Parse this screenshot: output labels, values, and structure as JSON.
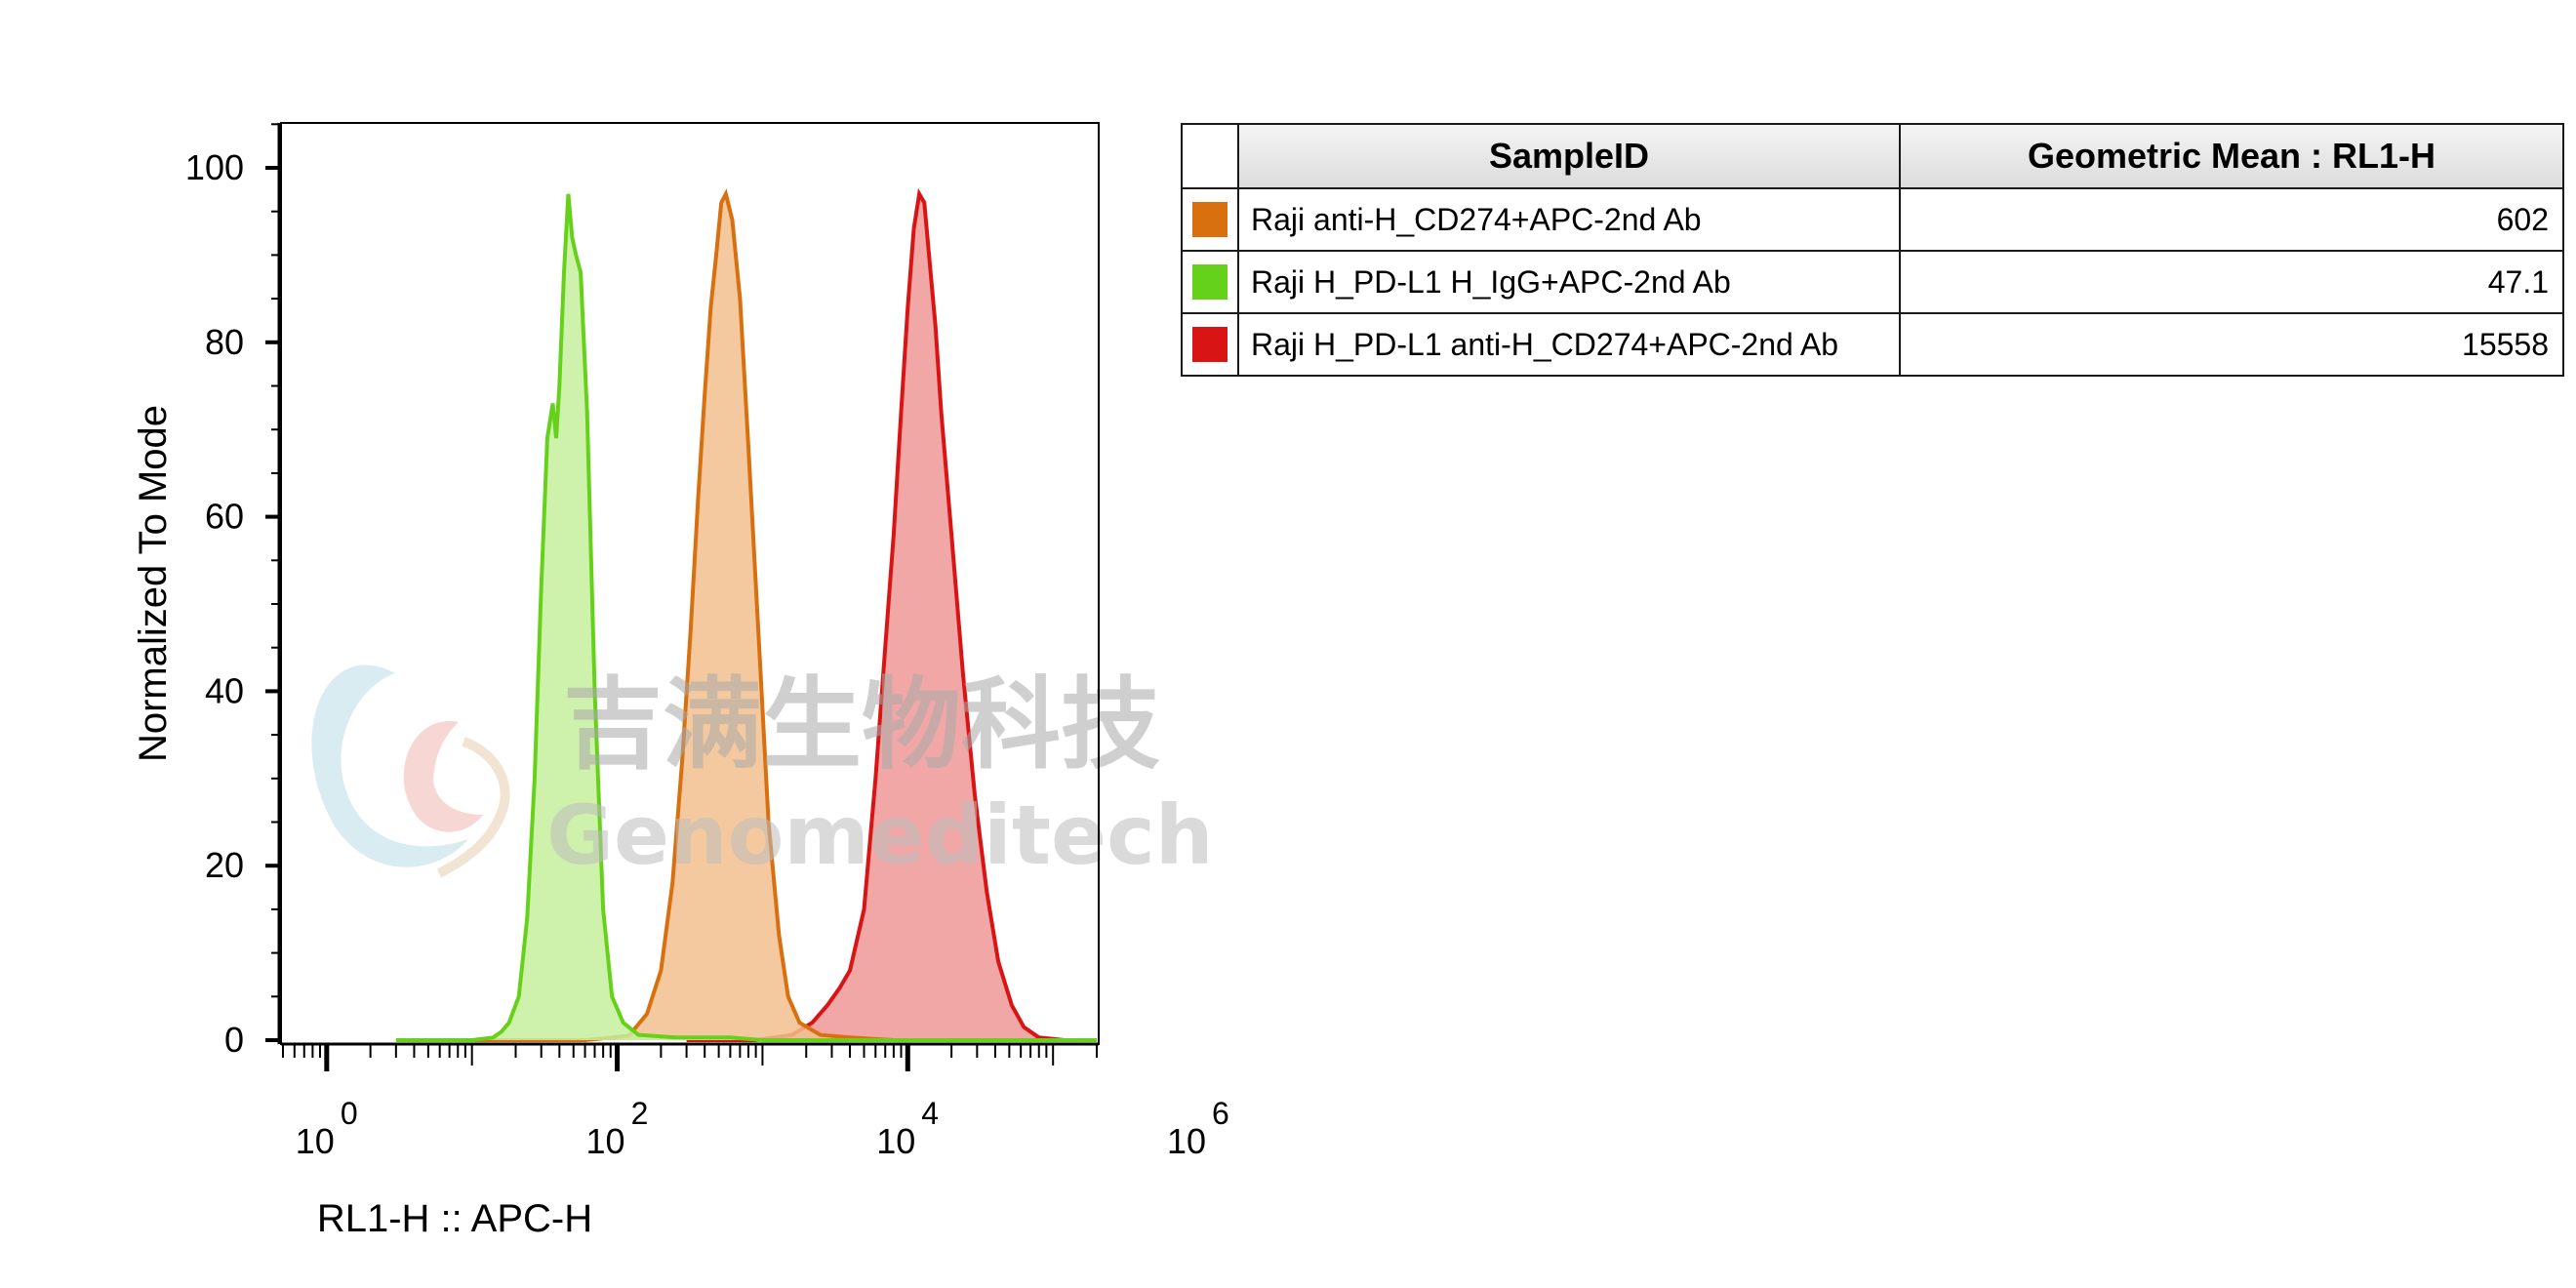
{
  "chart_data": {
    "type": "area",
    "xlabel": "RL1-H :: APC-H",
    "ylabel": "Normalized To Mode",
    "x_scale": "log",
    "xlim": [
      0.5,
      200000
    ],
    "ylim": [
      0,
      105
    ],
    "x_major_ticks": [
      {
        "base": "10",
        "exp": "0",
        "value": 1
      },
      {
        "base": "10",
        "exp": "2",
        "value": 100
      },
      {
        "base": "10",
        "exp": "4",
        "value": 10000
      },
      {
        "base": "10",
        "exp": "6",
        "value": 1000000
      }
    ],
    "y_ticks": [
      {
        "label": "0",
        "value": 0
      },
      {
        "label": "20",
        "value": 20
      },
      {
        "label": "40",
        "value": 40
      },
      {
        "label": "60",
        "value": 60
      },
      {
        "label": "80",
        "value": 80
      },
      {
        "label": "100",
        "value": 100
      }
    ],
    "series": [
      {
        "name": "Raji anti-H_CD274+APC-2nd Ab",
        "geometric_mean": "602",
        "line_color": "#d9700f",
        "fill_color": "#f2c08e",
        "points": [
          [
            8,
            0
          ],
          [
            60,
            0
          ],
          [
            120,
            0.5
          ],
          [
            160,
            3
          ],
          [
            200,
            8
          ],
          [
            240,
            18
          ],
          [
            280,
            32
          ],
          [
            320,
            47
          ],
          [
            360,
            62
          ],
          [
            400,
            74
          ],
          [
            440,
            84
          ],
          [
            480,
            90
          ],
          [
            520,
            96
          ],
          [
            560,
            97
          ],
          [
            620,
            94
          ],
          [
            700,
            85
          ],
          [
            800,
            68
          ],
          [
            950,
            45
          ],
          [
            1100,
            25
          ],
          [
            1300,
            12
          ],
          [
            1500,
            5
          ],
          [
            1800,
            2
          ],
          [
            2500,
            0.6
          ],
          [
            4000,
            0.3
          ],
          [
            8000,
            0
          ],
          [
            200000,
            0
          ]
        ]
      },
      {
        "name": "Raji H_PD-L1 H_IgG+APC-2nd Ab",
        "geometric_mean": "47.1",
        "line_color": "#66d11a",
        "fill_color": "#c5f09e",
        "points": [
          [
            3,
            0
          ],
          [
            10,
            0
          ],
          [
            14,
            0.3
          ],
          [
            16,
            1
          ],
          [
            18,
            2
          ],
          [
            21,
            5
          ],
          [
            24,
            14
          ],
          [
            27,
            30
          ],
          [
            30,
            52
          ],
          [
            33,
            69
          ],
          [
            36,
            73
          ],
          [
            38,
            69
          ],
          [
            40,
            75
          ],
          [
            43,
            88
          ],
          [
            46,
            97
          ],
          [
            49,
            92
          ],
          [
            52,
            90
          ],
          [
            56,
            88
          ],
          [
            62,
            72
          ],
          [
            70,
            40
          ],
          [
            80,
            15
          ],
          [
            92,
            5
          ],
          [
            110,
            2
          ],
          [
            140,
            0.6
          ],
          [
            250,
            0.3
          ],
          [
            600,
            0.3
          ],
          [
            1000,
            0
          ],
          [
            200000,
            0
          ]
        ]
      },
      {
        "name": "Raji H_PD-L1 anti-H_CD274+APC-2nd Ab",
        "geometric_mean": "15558",
        "line_color": "#d91414",
        "fill_color": "#f09898",
        "points": [
          [
            300,
            0
          ],
          [
            900,
            0
          ],
          [
            1600,
            0.6
          ],
          [
            2200,
            2
          ],
          [
            2800,
            4
          ],
          [
            3400,
            6
          ],
          [
            4000,
            8
          ],
          [
            5000,
            15
          ],
          [
            6000,
            30
          ],
          [
            7000,
            45
          ],
          [
            8000,
            58
          ],
          [
            9000,
            72
          ],
          [
            10000,
            84
          ],
          [
            11000,
            93
          ],
          [
            12000,
            97
          ],
          [
            13000,
            96
          ],
          [
            14000,
            90
          ],
          [
            15500,
            82
          ],
          [
            17000,
            72
          ],
          [
            20000,
            58
          ],
          [
            24000,
            42
          ],
          [
            29000,
            28
          ],
          [
            35000,
            17
          ],
          [
            42000,
            9
          ],
          [
            52000,
            4
          ],
          [
            63000,
            1.5
          ],
          [
            80000,
            0.3
          ],
          [
            120000,
            0
          ],
          [
            200000,
            0
          ]
        ]
      }
    ]
  },
  "table": {
    "headers": {
      "sample": "SampleID",
      "value": "Geometric Mean : RL1-H"
    },
    "rows": [
      {
        "color": "#d9700f",
        "sample": "Raji anti-H_CD274+APC-2nd Ab",
        "value": "602"
      },
      {
        "color": "#66d11a",
        "sample": "Raji H_PD-L1 H_IgG+APC-2nd Ab",
        "value": "47.1"
      },
      {
        "color": "#d91414",
        "sample": "Raji H_PD-L1 anti-H_CD274+APC-2nd Ab",
        "value": "15558"
      }
    ]
  },
  "watermark": {
    "cn": "吉满生物科技",
    "en": "Genomeditech"
  }
}
